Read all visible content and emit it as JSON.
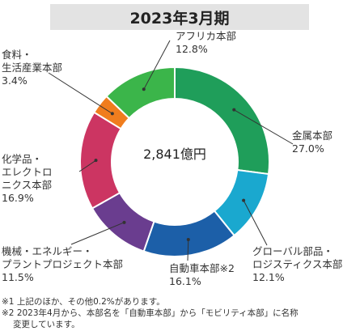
{
  "header": {
    "title": "2023年3月期"
  },
  "chart_data": {
    "type": "pie",
    "title": "2023年3月期",
    "center_label": "2,841億円",
    "series": [
      {
        "name_lines": [
          "金属本部"
        ],
        "value_label": "27.0%",
        "value": 27.0,
        "color": "#1f9e5a"
      },
      {
        "name_lines": [
          "グローバル部品・",
          "ロジスティクス本部"
        ],
        "value_label": "12.1%",
        "value": 12.1,
        "color": "#1aa8cf"
      },
      {
        "name_lines": [
          "自動車本部※2"
        ],
        "value_label": "16.1%",
        "value": 16.1,
        "color": "#1c5fa8"
      },
      {
        "name_lines": [
          "機械・エネルギー・",
          "プラントプロジェクト本部"
        ],
        "value_label": "11.5%",
        "value": 11.5,
        "color": "#6a3d8f"
      },
      {
        "name_lines": [
          "化学品・",
          "エレクトロ",
          "ニクス本部"
        ],
        "value_label": "16.9%",
        "value": 16.9,
        "color": "#cc3562"
      },
      {
        "name_lines": [
          "食料・",
          "生活産業本部"
        ],
        "value_label": "3.4%",
        "value": 3.4,
        "color": "#f07d1e"
      },
      {
        "name_lines": [
          "アフリカ本部"
        ],
        "value_label": "12.8%",
        "value": 12.8,
        "color": "#3bb54a"
      }
    ]
  },
  "notes": [
    "※1 上記のほか、その他0.2%があります。",
    "※2 2023年4月から、本部名を「自動車本部」から「モビリティ本部」に名称",
    "変更しています。"
  ]
}
